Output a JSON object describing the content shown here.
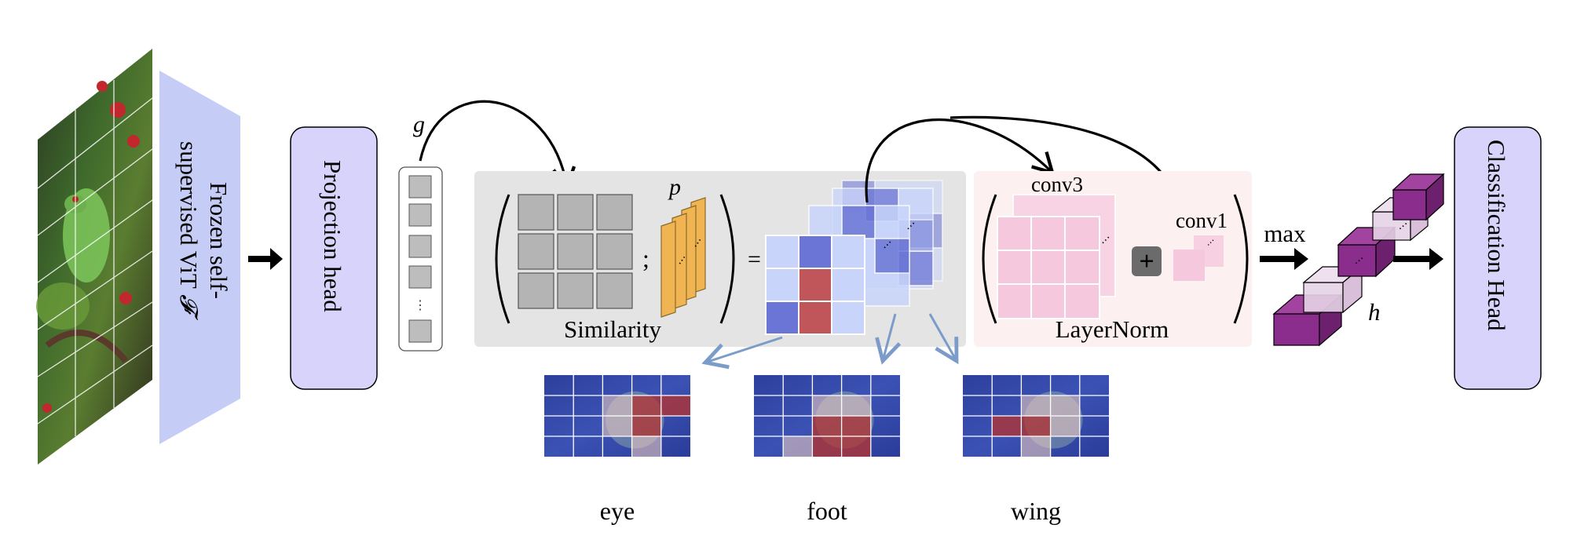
{
  "labels": {
    "vit": "Frozen self-supervised ViT",
    "vit_symbol": "𝓕",
    "projection": "Projection head",
    "g": "g",
    "p": "p",
    "semicolon": ";",
    "equals": "=",
    "similarity": "Similarity",
    "layernorm": "LayerNorm",
    "conv3": "conv3",
    "conv1": "conv1",
    "plus": "+",
    "max": "max",
    "h": "h",
    "classification": "Classification Head",
    "vdots": "⋮"
  },
  "parts": [
    {
      "name": "eye"
    },
    {
      "name": "foot"
    },
    {
      "name": "wing"
    }
  ],
  "colors": {
    "vit_fill": "#c5cdf7",
    "projection_fill": "#d8d3fa",
    "similarity_bg": "#e4e4e4",
    "layernorm_bg": "#fdf0f0",
    "prototype_fill": "#f0b552",
    "sim_light": "#c8d4fa",
    "sim_dark": "#6a75d6",
    "sim_red": "#c0555a",
    "conv_pink": "#f5c8de",
    "cube_purple": "#8a2d8c",
    "arrow_blue": "#7b9cc9"
  }
}
